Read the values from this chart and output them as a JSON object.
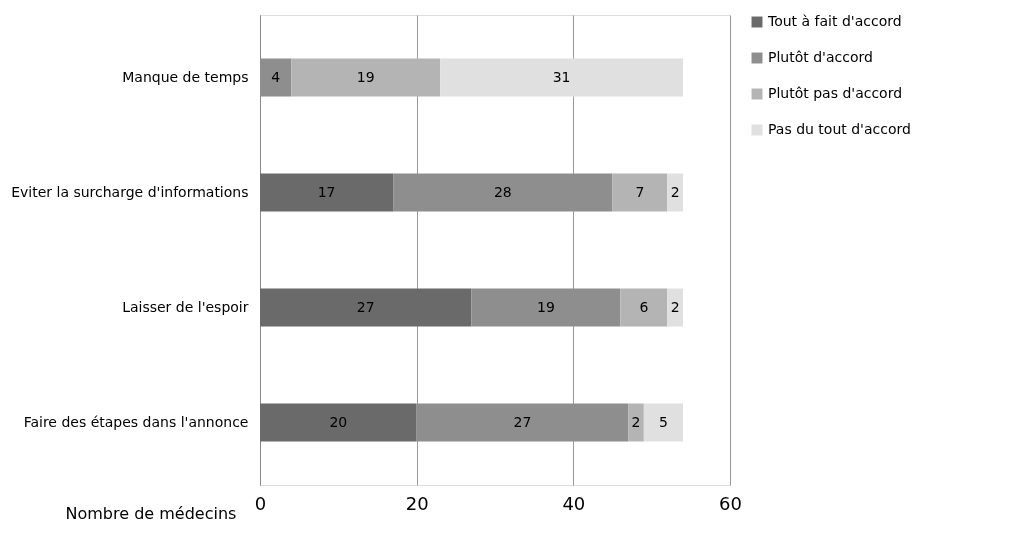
{
  "chart_data": {
    "type": "bar",
    "orientation": "horizontal",
    "stacked": true,
    "xlabel": "Nombre de médecins",
    "categories": [
      "Manque de temps",
      "Eviter la surcharge d'informations",
      "Laisser de l'espoir",
      "Faire des étapes dans l'annonce"
    ],
    "series": [
      {
        "name": "Tout à fait d'accord",
        "color": "#6a6a6a",
        "values": [
          null,
          17,
          27,
          20
        ]
      },
      {
        "name": "Plutôt d'accord",
        "color": "#8e8e8e",
        "values": [
          4,
          28,
          19,
          27
        ]
      },
      {
        "name": "Plutôt pas d'accord",
        "color": "#b4b4b4",
        "values": [
          19,
          7,
          6,
          2
        ]
      },
      {
        "name": "Pas du tout d'accord",
        "color": "#e0e0e0",
        "values": [
          31,
          2,
          2,
          5
        ]
      }
    ],
    "xlim": [
      0,
      60
    ],
    "xticks": [
      0,
      20,
      40,
      60
    ],
    "grid": "x",
    "legend": "right",
    "data_labels": true
  }
}
